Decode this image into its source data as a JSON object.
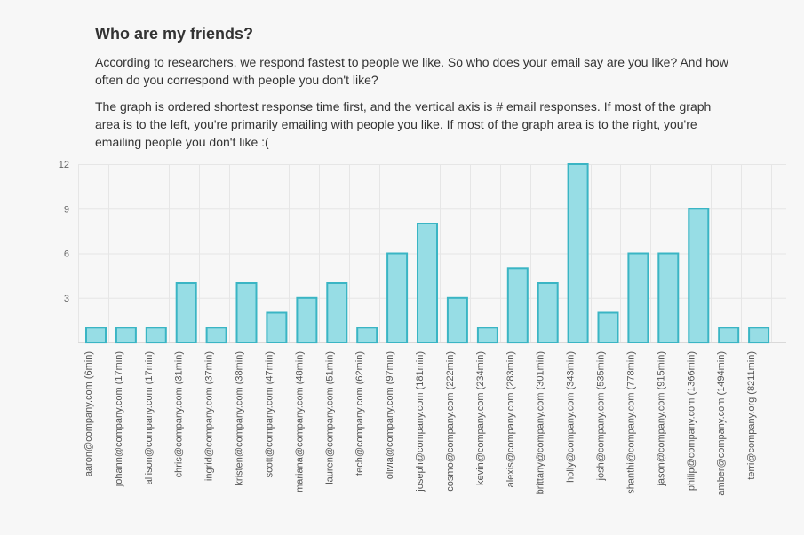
{
  "header": {
    "title": "Who are my friends?",
    "para1": "According to researchers, we respond fastest to people we like. So who does your email say are you like? And how often do you correspond with people you don't like?",
    "para2": "The graph is ordered shortest response time first, and the vertical axis is # email responses. If most of the graph area is to the left, you're primarily emailing with people you like. If most of the graph area is to the right, you're emailing people you don't like :("
  },
  "colors": {
    "bar_fill": "#97dde5",
    "bar_stroke": "#3ab5c4",
    "grid": "#e6e6e6"
  },
  "chart_data": {
    "type": "bar",
    "title": "",
    "xlabel": "",
    "ylabel": "",
    "ylim": [
      0,
      12
    ],
    "yticks": [
      3,
      6,
      9,
      12
    ],
    "grid": true,
    "categories": [
      "aaron@company.com (6min)",
      "johann@company.com (17min)",
      "allison@company.com (17min)",
      "chris@company.com (31min)",
      "ingrid@company.com (37min)",
      "kristen@company.com (38min)",
      "scott@company.com (47min)",
      "mariana@company.com (48min)",
      "lauren@company.com (51min)",
      "tech@company.com (62min)",
      "olivia@company.com (97min)",
      "joseph@company.com (181min)",
      "cosmo@company.com (222min)",
      "kevin@company.com (234min)",
      "alexis@company.com (283min)",
      "brittany@company.com (301min)",
      "holly@company.com (343min)",
      "josh@company.com (535min)",
      "shanthi@company.com (778min)",
      "jason@company.com (915min)",
      "philip@company.com (1366min)",
      "amber@company.com (1494min)",
      "terri@company.org (8211min)"
    ],
    "values": [
      1,
      1,
      1,
      4,
      1,
      4,
      2,
      3,
      4,
      1,
      6,
      8,
      3,
      1,
      5,
      4,
      12,
      2,
      6,
      6,
      9,
      1,
      1
    ]
  }
}
